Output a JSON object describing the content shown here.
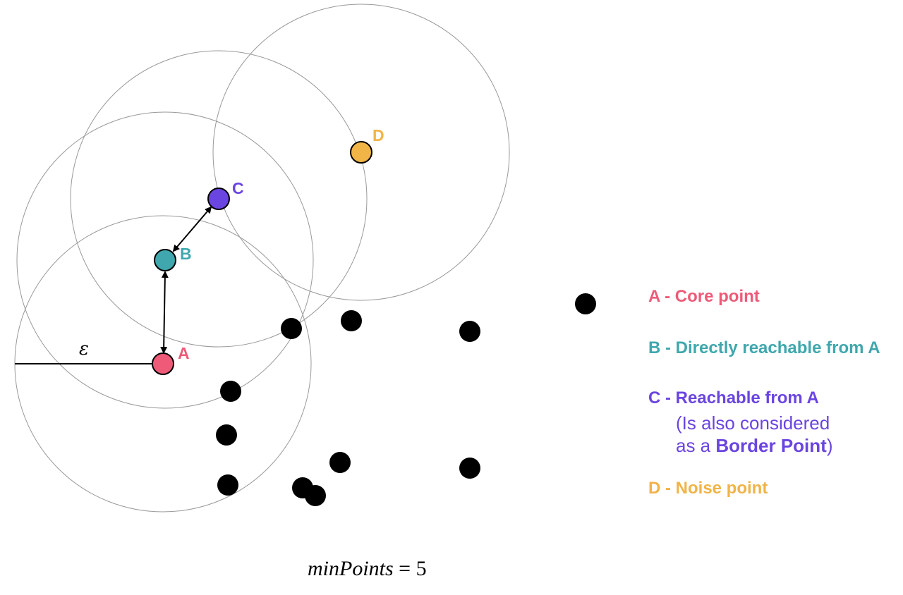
{
  "colors": {
    "core": "#ee5a78",
    "reachable_direct": "#3fa7ad",
    "reachable": "#6a45e0",
    "noise": "#f0b447",
    "neighbor": "#000000",
    "circle": "#999999"
  },
  "points": {
    "a_label": "A",
    "b_label": "B",
    "c_label": "C",
    "d_label": "D"
  },
  "epsilon_symbol": "ε",
  "legend": {
    "a": "A - Core point",
    "b": "B - Directly reachable from A",
    "c": "C - Reachable from A",
    "c_sub_line1": "(Is also considered",
    "c_sub_prefix": "as a ",
    "c_sub_bold": "Border Point",
    "c_sub_suffix": ")",
    "d": "D - Noise point"
  },
  "formula": {
    "lhs": "minPoints",
    "op": " = ",
    "value": "5"
  }
}
